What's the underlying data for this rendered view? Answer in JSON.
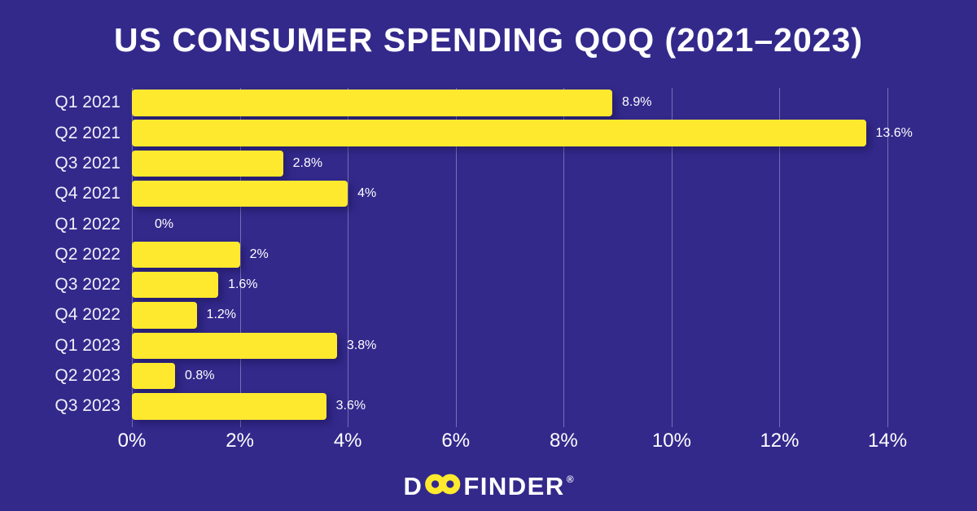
{
  "title": "US CONSUMER SPENDING QOQ (2021–2023)",
  "brand": {
    "logo_d": "D",
    "logo_rest": "FINDER",
    "registered": "®"
  },
  "colors": {
    "background": "#33298B",
    "bar": "#FFE92E",
    "text": "#FFFFFF",
    "gridline": "rgba(255,255,255,0.33)"
  },
  "chart_data": {
    "type": "bar",
    "orientation": "horizontal",
    "title": "US CONSUMER SPENDING QOQ (2021–2023)",
    "categories": [
      "Q1 2021",
      "Q2 2021",
      "Q3 2021",
      "Q4 2021",
      "Q1 2022",
      "Q2 2022",
      "Q3 2022",
      "Q4 2022",
      "Q1 2023",
      "Q2 2023",
      "Q3 2023"
    ],
    "values": [
      8.9,
      13.6,
      2.8,
      4,
      0,
      2,
      1.6,
      1.2,
      3.8,
      0.8,
      3.6
    ],
    "value_labels": [
      "8.9%",
      "13.6%",
      "2.8%",
      "4%",
      "0%",
      "2%",
      "1.6%",
      "1.2%",
      "3.8%",
      "0.8%",
      "3.6%"
    ],
    "x_ticks": [
      "0%",
      "2%",
      "4%",
      "6%",
      "8%",
      "10%",
      "12%",
      "14%"
    ],
    "x_tick_values": [
      0,
      2,
      4,
      6,
      8,
      10,
      12,
      14
    ],
    "xlim": [
      0,
      14
    ],
    "xlabel": "",
    "ylabel": "",
    "grid": true,
    "legend": false
  }
}
